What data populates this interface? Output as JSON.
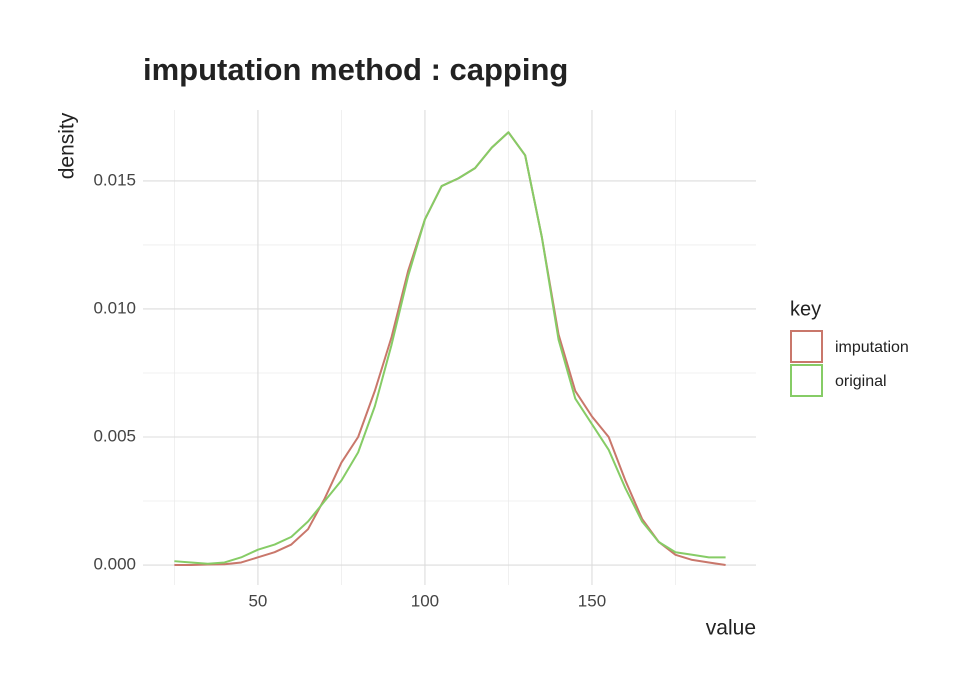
{
  "chart_data": {
    "type": "line",
    "title": "imputation method : capping",
    "x_label": "value",
    "y_label": "density",
    "legend_title": "key",
    "x": [
      25,
      30,
      35,
      40,
      45,
      50,
      55,
      60,
      65,
      70,
      75,
      80,
      85,
      90,
      95,
      100,
      105,
      110,
      115,
      120,
      125,
      130,
      135,
      140,
      145,
      150,
      155,
      160,
      165,
      170,
      175,
      180,
      185,
      190
    ],
    "series": [
      {
        "name": "imputation",
        "color": "#c9776b",
        "values": [
          0,
          0,
          2e-05,
          3e-05,
          0.0001,
          0.0003,
          0.0005,
          0.0008,
          0.0014,
          0.0026,
          0.004,
          0.005,
          0.0068,
          0.0089,
          0.0115,
          0.0135,
          0.0148,
          0.0151,
          0.0155,
          0.0163,
          0.0169,
          0.016,
          0.0128,
          0.009,
          0.0068,
          0.0058,
          0.005,
          0.0033,
          0.0018,
          0.0009,
          0.0004,
          0.0002,
          0.0001,
          0
        ]
      },
      {
        "name": "original",
        "color": "#86cc66",
        "values": [
          0.00015,
          0.0001,
          5e-05,
          0.0001,
          0.0003,
          0.0006,
          0.0008,
          0.0011,
          0.0017,
          0.0025,
          0.0033,
          0.0044,
          0.0062,
          0.0086,
          0.0113,
          0.0135,
          0.0148,
          0.0151,
          0.0155,
          0.0163,
          0.0169,
          0.016,
          0.0128,
          0.0088,
          0.0065,
          0.0055,
          0.0045,
          0.003,
          0.0017,
          0.0009,
          0.0005,
          0.0004,
          0.0003,
          0.0003
        ]
      }
    ],
    "xlim": [
      15.6,
      199.1
    ],
    "ylim": [
      -0.00078,
      0.01777
    ],
    "xticks": [
      50,
      100,
      150
    ],
    "yticks": [
      {
        "value": 0,
        "label": "0.000"
      },
      0.005,
      {
        "value": 0.01,
        "label": "0.010"
      },
      0.015
    ],
    "xticks_minor": [
      25,
      75,
      125,
      175
    ],
    "yticks_minor": [
      0.0025,
      0.0075,
      0.0125
    ],
    "grid": true
  }
}
